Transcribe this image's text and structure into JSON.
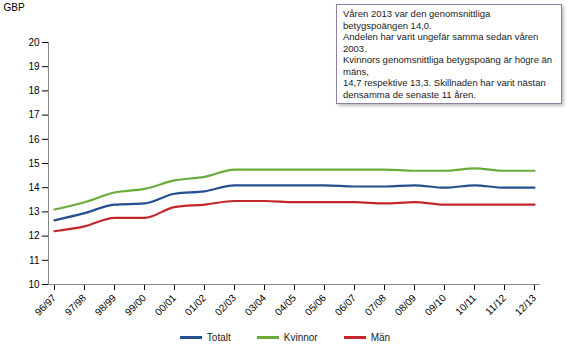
{
  "chart_data": {
    "type": "line",
    "y_label": "GBP",
    "annotation": [
      "Våren 2013 var den genomsnittliga betygspoängen 14,0.",
      "Andelen har varit ungefär samma sedan våren 2003.",
      "Kvinnors genomsnittliga betygspoäng är högre än mäns,",
      "14,7 respektive 13,3. Skillnaden har varit nästan",
      "densamma de senaste 11 åren."
    ],
    "categories": [
      "96/97",
      "97/98",
      "98/99",
      "99/00",
      "00/01",
      "01/02",
      "02/03",
      "03/04",
      "04/05",
      "05/06",
      "06/07",
      "07/08",
      "08/09",
      "09/10",
      "10/11",
      "11/12",
      "12/13"
    ],
    "series": [
      {
        "name": "Totalt",
        "color": "#24508f",
        "values": [
          12.65,
          12.95,
          13.3,
          13.35,
          13.75,
          13.85,
          14.1,
          14.1,
          14.1,
          14.1,
          14.05,
          14.05,
          14.1,
          14.0,
          14.1,
          14.0,
          14.0
        ]
      },
      {
        "name": "Kvinnor",
        "color": "#6aab3a",
        "values": [
          13.1,
          13.4,
          13.8,
          13.95,
          14.3,
          14.45,
          14.75,
          14.75,
          14.75,
          14.75,
          14.75,
          14.75,
          14.7,
          14.7,
          14.8,
          14.7,
          14.7
        ]
      },
      {
        "name": "Män",
        "color": "#c4262c",
        "values": [
          12.2,
          12.4,
          12.75,
          12.75,
          13.2,
          13.3,
          13.45,
          13.45,
          13.4,
          13.4,
          13.4,
          13.35,
          13.4,
          13.3,
          13.3,
          13.3,
          13.3
        ]
      }
    ],
    "ylim": [
      10,
      20
    ],
    "yticks": [
      10,
      11,
      12,
      13,
      14,
      15,
      16,
      17,
      18,
      19,
      20
    ],
    "grid": false,
    "legend": "bottom"
  }
}
